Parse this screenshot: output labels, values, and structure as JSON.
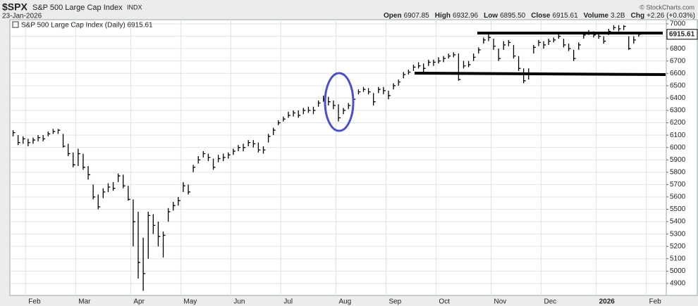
{
  "header": {
    "symbol": "$SPX",
    "name": "S&P 500 Large Cap Index",
    "exchange": "INDX",
    "date": "23-Jan-2026",
    "stats": [
      {
        "label": "Open",
        "value": "6907.85"
      },
      {
        "label": "High",
        "value": "6932.96"
      },
      {
        "label": "Low",
        "value": "6895.50"
      },
      {
        "label": "Close",
        "value": "6915.61"
      },
      {
        "label": "Volume",
        "value": "3.2B"
      },
      {
        "label": "Chg",
        "value": "+2.26 (+0.03%)"
      }
    ],
    "watermark": "© StockCharts.com"
  },
  "chart_data": {
    "type": "ohlc",
    "legend_text": "S&P 500 Large Cap Index (Daily) 6915.61",
    "color": "#000000",
    "grid": true,
    "categories": [
      null,
      null,
      null,
      "Feb",
      null,
      null,
      null,
      null,
      null,
      null,
      null,
      null,
      null,
      "Mar",
      null,
      null,
      null,
      null,
      null,
      null,
      null,
      null,
      null,
      null,
      "Apr",
      null,
      null,
      null,
      null,
      null,
      null,
      null,
      null,
      null,
      "May",
      null,
      null,
      null,
      null,
      null,
      null,
      null,
      null,
      null,
      "Jun",
      null,
      null,
      null,
      null,
      null,
      null,
      null,
      null,
      null,
      "Jul",
      null,
      null,
      null,
      null,
      null,
      null,
      null,
      null,
      null,
      null,
      "Aug",
      null,
      null,
      null,
      null,
      null,
      null,
      null,
      null,
      null,
      "Sep",
      null,
      null,
      null,
      null,
      null,
      null,
      null,
      null,
      null,
      "Oct",
      null,
      null,
      null,
      null,
      null,
      null,
      null,
      null,
      null,
      null,
      "Nov",
      null,
      null,
      null,
      null,
      null,
      null,
      null,
      null,
      null,
      "Dec",
      null,
      null,
      null,
      null,
      null,
      null,
      null,
      null,
      null,
      null,
      "2026",
      null,
      null,
      null,
      null,
      null,
      null,
      null,
      null,
      null,
      "Feb",
      null,
      null,
      null
    ],
    "high": [
      6140,
      6100,
      6090,
      6070,
      6080,
      6100,
      6100,
      6130,
      6150,
      6150,
      6110,
      6030,
      5960,
      5990,
      5950,
      5850,
      5700,
      5620,
      5670,
      5710,
      5720,
      5790,
      5780,
      5690,
      5580,
      5480,
      5270,
      5480,
      5460,
      5400,
      5320,
      5510,
      5560,
      5600,
      5720,
      5700,
      5860,
      5930,
      5970,
      5950,
      5910,
      5940,
      5950,
      5960,
      5990,
      6020,
      6030,
      6060,
      6060,
      6040,
      6010,
      6110,
      6160,
      6220,
      6250,
      6290,
      6300,
      6300,
      6320,
      6330,
      6330,
      6380,
      6420,
      6410,
      6380,
      6350,
      6320,
      6360,
      6410,
      6470,
      6490,
      6480,
      6440,
      6490,
      6490,
      6460,
      6520,
      6550,
      6610,
      6630,
      6670,
      6690,
      6680,
      6710,
      6710,
      6730,
      6740,
      6760,
      6770,
      6760,
      6700,
      6700,
      6760,
      6810,
      6890,
      6920,
      6880,
      6800,
      6860,
      6870,
      6830,
      6740,
      6640,
      6640,
      6830,
      6870,
      6860,
      6880,
      6890,
      6930,
      6880,
      6840,
      6790,
      6850,
      6930,
      6950,
      6940,
      6930,
      6900,
      6960,
      6990,
      6990,
      6990,
      6900,
      6900,
      6932.96,
      null,
      null,
      null,
      null,
      null
    ],
    "low": [
      6090,
      6020,
      6030,
      6010,
      6030,
      6050,
      6050,
      6090,
      6110,
      6110,
      6000,
      5930,
      5840,
      5850,
      5820,
      5740,
      5580,
      5500,
      5590,
      5640,
      5650,
      5720,
      5670,
      5570,
      5200,
      4940,
      4840,
      5100,
      5300,
      5200,
      5110,
      5400,
      5490,
      5530,
      5640,
      5620,
      5800,
      5870,
      5920,
      5890,
      5820,
      5880,
      5890,
      5910,
      5940,
      5970,
      5970,
      6010,
      6000,
      5960,
      5950,
      6040,
      6100,
      6180,
      6210,
      6240,
      6250,
      6240,
      6270,
      6280,
      6270,
      6330,
      6370,
      6340,
      6310,
      6210,
      6270,
      6310,
      6360,
      6430,
      6450,
      6430,
      6340,
      6440,
      6430,
      6390,
      6470,
      6500,
      6560,
      6590,
      6620,
      6640,
      6610,
      6660,
      6660,
      6680,
      6690,
      6720,
      6730,
      6540,
      6640,
      6650,
      6700,
      6760,
      6840,
      6860,
      6790,
      6700,
      6790,
      6820,
      6720,
      6620,
      6520,
      6550,
      6760,
      6820,
      6800,
      6830,
      6850,
      6880,
      6810,
      6780,
      6700,
      6790,
      6880,
      6910,
      6890,
      6880,
      6840,
      6910,
      6950,
      6940,
      6950,
      6790,
      6840,
      6895.5,
      null,
      null,
      null,
      null,
      null
    ],
    "close": [
      6120,
      6040,
      6070,
      6040,
      6060,
      6080,
      6070,
      6110,
      6130,
      6140,
      6010,
      5950,
      5860,
      5950,
      5840,
      5780,
      5600,
      5520,
      5640,
      5680,
      5670,
      5770,
      5690,
      5580,
      5400,
      5070,
      4980,
      5450,
      5370,
      5280,
      5290,
      5480,
      5530,
      5570,
      5690,
      5640,
      5840,
      5900,
      5950,
      5920,
      5840,
      5910,
      5920,
      5940,
      5970,
      6000,
      6000,
      6040,
      6030,
      5980,
      5980,
      6090,
      6140,
      6200,
      6230,
      6260,
      6280,
      6260,
      6300,
      6300,
      6300,
      6360,
      6390,
      6370,
      6340,
      6240,
      6300,
      6340,
      6390,
      6450,
      6470,
      6450,
      6370,
      6470,
      6460,
      6420,
      6500,
      6530,
      6590,
      6610,
      6650,
      6660,
      6640,
      6690,
      6690,
      6700,
      6720,
      6740,
      6750,
      6550,
      6660,
      6670,
      6730,
      6790,
      6870,
      6890,
      6820,
      6720,
      6830,
      6850,
      6740,
      6640,
      6540,
      6600,
      6810,
      6850,
      6830,
      6860,
      6870,
      6900,
      6830,
      6800,
      6720,
      6830,
      6910,
      6930,
      6910,
      6900,
      6860,
      6940,
      6970,
      6960,
      6980,
      6800,
      6870,
      6915.61,
      null,
      null,
      null,
      null,
      null
    ],
    "ylim": [
      4803,
      7034
    ],
    "yticks": [
      4900,
      5000,
      5100,
      5200,
      5300,
      5400,
      5500,
      5600,
      5700,
      5800,
      5900,
      6000,
      6100,
      6200,
      6300,
      6400,
      6500,
      6600,
      6700,
      6800,
      6900,
      7000
    ]
  }
}
